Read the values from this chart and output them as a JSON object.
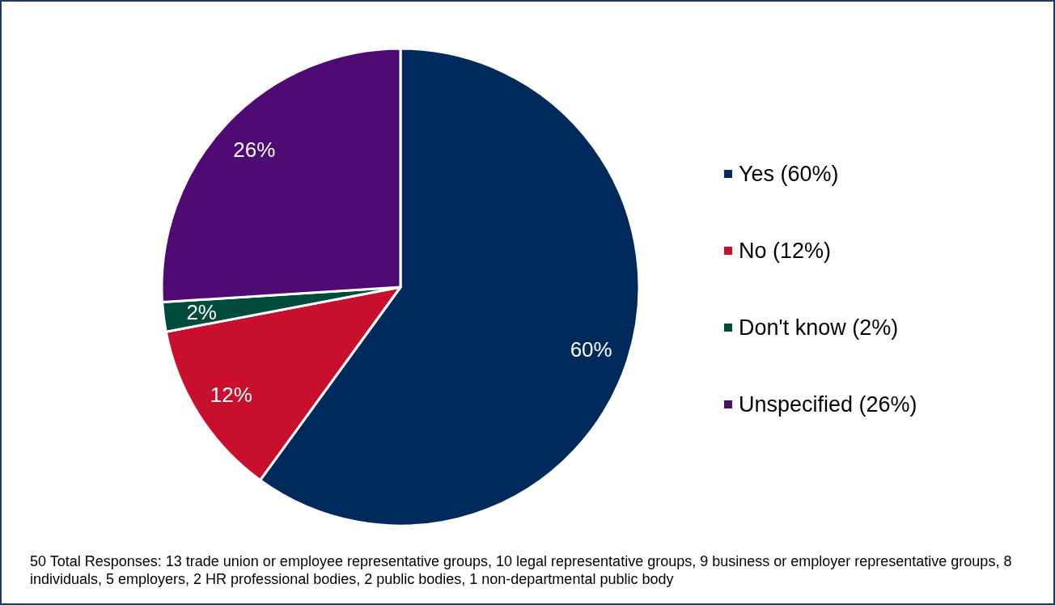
{
  "chart_data": {
    "type": "pie",
    "categories": [
      "Yes (60%)",
      "No (12%)",
      "Don't know (2%)",
      "Unspecified (26%)"
    ],
    "values": [
      60,
      12,
      2,
      26
    ],
    "colors": [
      "#002a5c",
      "#c8102e",
      "#004b3c",
      "#4f0a73"
    ],
    "value_labels": [
      "60%",
      "12%",
      "2%",
      "26%"
    ],
    "legend": "right",
    "annotations": [
      "50 Total Responses: 13 trade union or employee representative groups, 10 legal representative groups, 9 business or employer representative groups, 8 individuals, 5 employers, 2 HR professional bodies, 2 public bodies, 1 non-departmental public body"
    ]
  }
}
